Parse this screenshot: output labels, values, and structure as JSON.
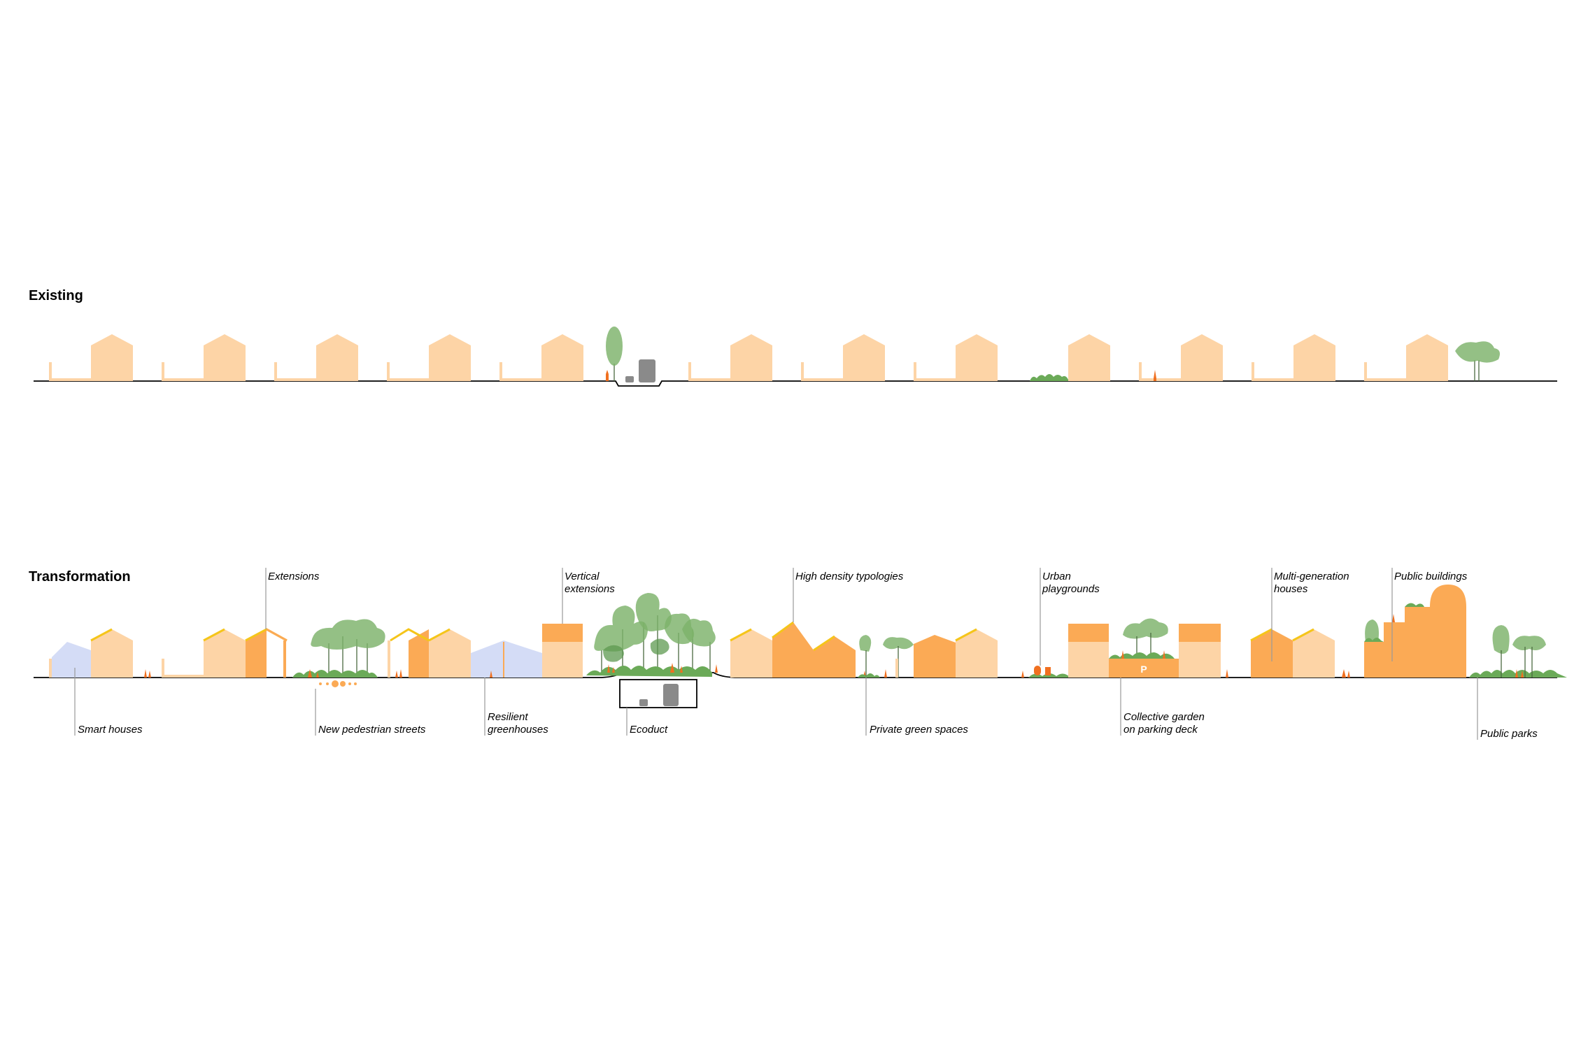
{
  "sections": {
    "existing": {
      "title": "Existing"
    },
    "transformation": {
      "title": "Transformation"
    }
  },
  "labels": {
    "extensions": "Extensions",
    "vertical_extensions_1": "Vertical",
    "vertical_extensions_2": "extensions",
    "high_density": "High density typologies",
    "urban_playgrounds_1": "Urban",
    "urban_playgrounds_2": "playgrounds",
    "multi_generation_1": "Multi-generation",
    "multi_generation_2": "houses",
    "public_buildings": "Public buildings",
    "smart_houses": "Smart houses",
    "pedestrian_streets": "New pedestrian streets",
    "resilient_1": "Resilient",
    "resilient_2": "greenhouses",
    "ecoduct": "Ecoduct",
    "private_green": "Private green spaces",
    "collective_1": "Collective garden",
    "collective_2": "on parking deck",
    "public_parks": "Public parks",
    "parking_sign": "P"
  },
  "colors": {
    "house_light": "#FDD4A6",
    "house_dark": "#FBAA55",
    "greenery": "#7DB26A",
    "people": "#F07020",
    "greenhouse": "#D4DCF6",
    "solar_roof": "#F5C51A",
    "vehicle": "#8a8a8a"
  }
}
